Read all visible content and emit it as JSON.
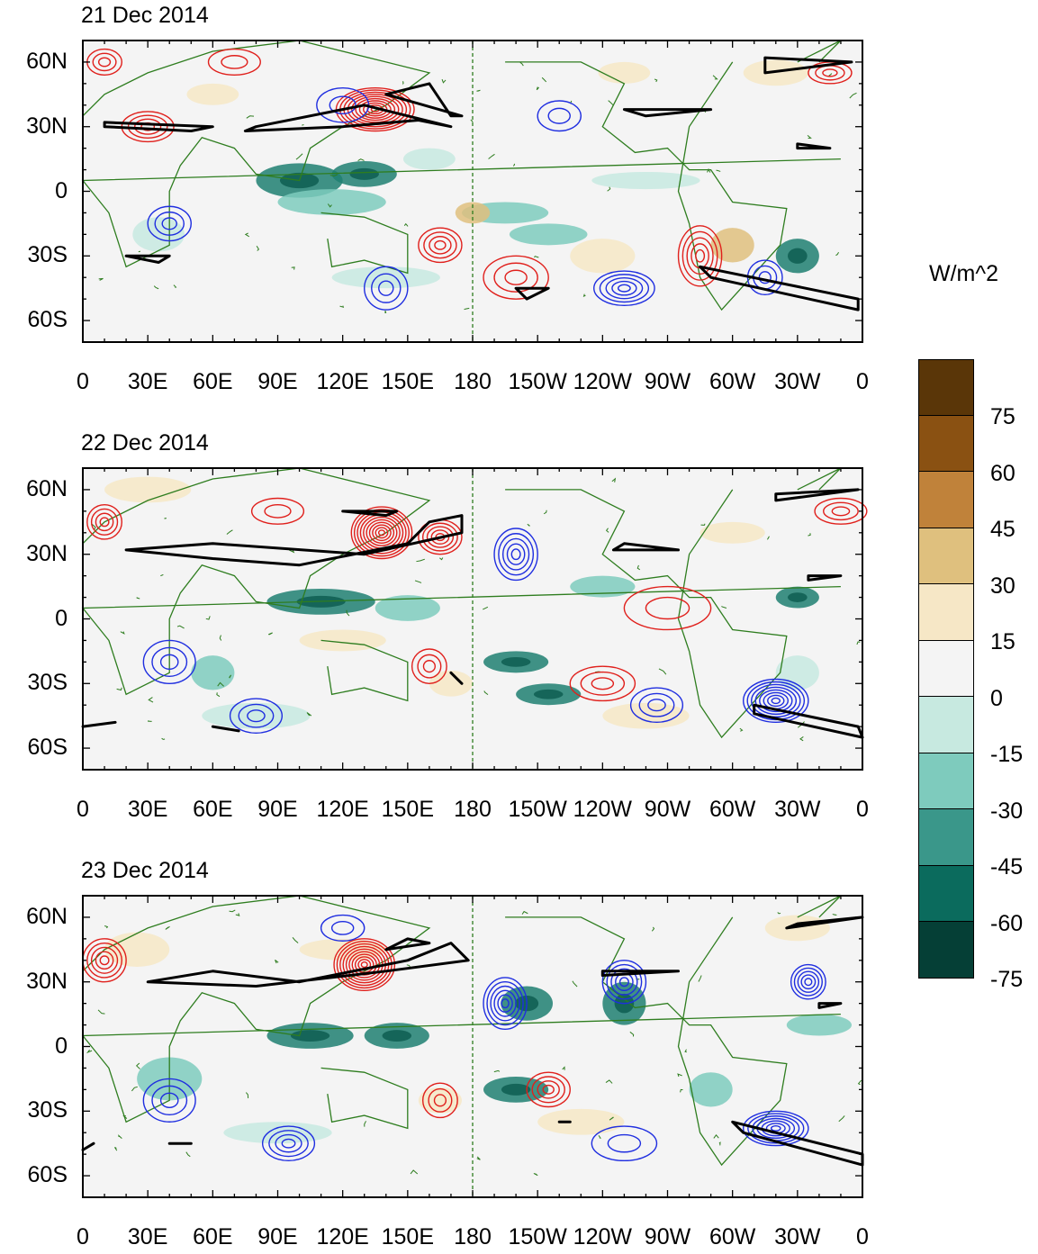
{
  "colorbar": {
    "units": "W/m^2",
    "labels": [
      "75",
      "60",
      "45",
      "30",
      "15",
      "0",
      "-15",
      "-30",
      "-45",
      "-60",
      "-75"
    ],
    "colors": [
      "#4d2e0a",
      "#8a5112",
      "#c08133",
      "#dfc07e",
      "#f5e6c4",
      "#f4f4f4",
      "#f4f4f4",
      "#c5e8df",
      "#7ecbbd",
      "#339485",
      "#0b6b5d",
      "#053f36"
    ]
  },
  "axes": {
    "lat_labels": [
      "60N",
      "30N",
      "0",
      "30S",
      "60S"
    ],
    "lon_labels": [
      "0",
      "30E",
      "60E",
      "90E",
      "120E",
      "150E",
      "180",
      "150W",
      "120W",
      "90W",
      "60W",
      "30W",
      "0"
    ]
  },
  "panels": [
    {
      "title": "21 Dec 2014"
    },
    {
      "title": "22 Dec 2014"
    },
    {
      "title": "23 Dec 2014"
    }
  ]
}
